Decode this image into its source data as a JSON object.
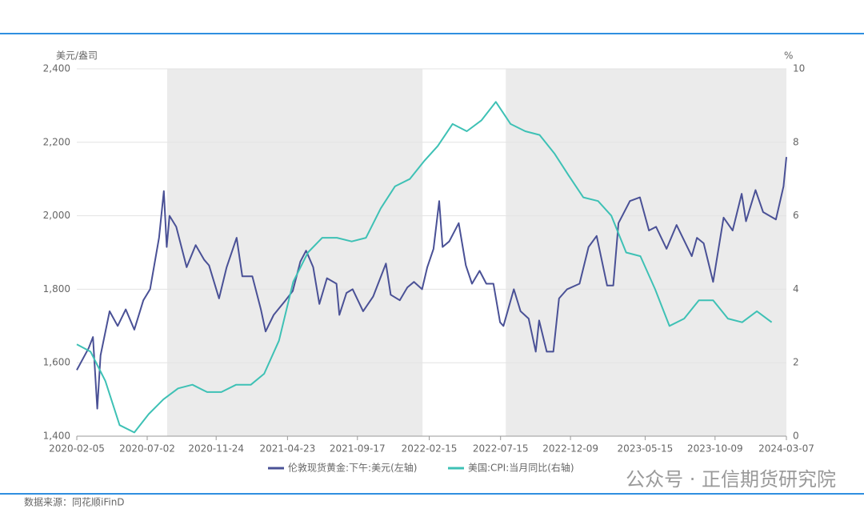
{
  "chart_data": {
    "type": "line",
    "ylabel": "美元/盎司",
    "y2label": "%",
    "xlim": [
      "2020-02-05",
      "2024-03-07"
    ],
    "xticks": [
      "2020-02-05",
      "2020-07-02",
      "2020-11-24",
      "2021-04-23",
      "2021-09-17",
      "2022-02-15",
      "2022-07-15",
      "2022-12-09",
      "2023-05-15",
      "2023-10-09",
      "2024-03-07"
    ],
    "ylim": [
      1400,
      2400
    ],
    "yticks": [
      {
        "value": 1400,
        "label": "1,400"
      },
      {
        "value": 1600,
        "label": "1,600"
      },
      {
        "value": 1800,
        "label": "1,800"
      },
      {
        "value": 2000,
        "label": "2,000"
      },
      {
        "value": 2200,
        "label": "2,200"
      },
      {
        "value": 2400,
        "label": "2,400"
      }
    ],
    "y2lim": [
      0,
      10
    ],
    "y2ticks": [
      0,
      2,
      4,
      6,
      8,
      10
    ],
    "grid": true,
    "shaded_ranges": [
      [
        "2020-08-13",
        "2022-02-01"
      ],
      [
        "2022-07-26",
        "2024-03-07"
      ]
    ],
    "shade_color": "#ebebeb",
    "series": [
      {
        "name": "伦敦现货黄金:下午:美元(左轴)",
        "color": "#4a5196",
        "x": [
          "2020-02-05",
          "2020-03-01",
          "2020-03-10",
          "2020-03-19",
          "2020-03-26",
          "2020-04-14",
          "2020-05-01",
          "2020-05-18",
          "2020-06-05",
          "2020-06-24",
          "2020-07-08",
          "2020-07-27",
          "2020-08-06",
          "2020-08-12",
          "2020-08-18",
          "2020-09-01",
          "2020-09-23",
          "2020-10-12",
          "2020-10-30",
          "2020-11-09",
          "2020-11-30",
          "2020-12-16",
          "2021-01-06",
          "2021-01-18",
          "2021-02-08",
          "2021-02-26",
          "2021-03-08",
          "2021-03-25",
          "2021-04-19",
          "2021-05-04",
          "2021-05-20",
          "2021-06-01",
          "2021-06-16",
          "2021-06-29",
          "2021-07-15",
          "2021-08-04",
          "2021-08-10",
          "2021-08-25",
          "2021-09-07",
          "2021-09-29",
          "2021-10-20",
          "2021-11-10",
          "2021-11-16",
          "2021-11-26",
          "2021-12-15",
          "2021-12-31",
          "2022-01-14",
          "2022-01-31",
          "2022-02-11",
          "2022-02-24",
          "2022-03-08",
          "2022-03-15",
          "2022-03-29",
          "2022-04-18",
          "2022-05-03",
          "2022-05-16",
          "2022-06-01",
          "2022-06-15",
          "2022-06-30",
          "2022-07-14",
          "2022-07-21",
          "2022-08-12",
          "2022-08-26",
          "2022-09-12",
          "2022-09-27",
          "2022-10-04",
          "2022-10-20",
          "2022-11-03",
          "2022-11-15",
          "2022-12-02",
          "2022-12-28",
          "2023-01-16",
          "2023-02-02",
          "2023-02-24",
          "2023-03-09",
          "2023-03-20",
          "2023-04-13",
          "2023-05-04",
          "2023-05-23",
          "2023-06-07",
          "2023-06-29",
          "2023-07-20",
          "2023-08-21",
          "2023-09-01",
          "2023-09-15",
          "2023-10-05",
          "2023-10-27",
          "2023-11-15",
          "2023-12-04",
          "2023-12-13",
          "2024-01-02",
          "2024-01-18",
          "2024-02-14",
          "2024-03-01",
          "2024-03-07"
        ],
        "values": [
          1580,
          1640,
          1670,
          1475,
          1620,
          1740,
          1700,
          1745,
          1690,
          1770,
          1800,
          1940,
          2067,
          1915,
          2000,
          1970,
          1860,
          1920,
          1880,
          1865,
          1775,
          1860,
          1940,
          1835,
          1835,
          1745,
          1685,
          1730,
          1770,
          1795,
          1875,
          1905,
          1860,
          1760,
          1830,
          1815,
          1730,
          1790,
          1800,
          1740,
          1780,
          1850,
          1870,
          1785,
          1770,
          1805,
          1820,
          1800,
          1860,
          1910,
          2040,
          1915,
          1930,
          1980,
          1865,
          1815,
          1850,
          1815,
          1815,
          1710,
          1700,
          1800,
          1740,
          1720,
          1630,
          1715,
          1630,
          1630,
          1775,
          1800,
          1815,
          1915,
          1945,
          1810,
          1810,
          1980,
          2040,
          2050,
          1960,
          1970,
          1910,
          1975,
          1890,
          1940,
          1925,
          1820,
          1995,
          1960,
          2060,
          1985,
          2070,
          2010,
          1990,
          2080,
          2160
        ]
      },
      {
        "name": "美国:CPI:当月同比(右轴)",
        "color": "#3ec1b5",
        "axis": "y2",
        "x": [
          "2020-02-05",
          "2020-03-05",
          "2020-04-05",
          "2020-05-05",
          "2020-06-05",
          "2020-07-05",
          "2020-08-05",
          "2020-09-05",
          "2020-10-05",
          "2020-11-05",
          "2020-12-05",
          "2021-01-05",
          "2021-02-05",
          "2021-03-05",
          "2021-04-05",
          "2021-05-05",
          "2021-06-05",
          "2021-07-05",
          "2021-08-05",
          "2021-09-05",
          "2021-10-05",
          "2021-11-05",
          "2021-12-05",
          "2022-01-05",
          "2022-02-05",
          "2022-03-05",
          "2022-04-05",
          "2022-05-05",
          "2022-06-05",
          "2022-07-05",
          "2022-08-05",
          "2022-09-05",
          "2022-10-05",
          "2022-11-05",
          "2022-12-05",
          "2023-01-05",
          "2023-02-05",
          "2023-03-05",
          "2023-04-05",
          "2023-05-05",
          "2023-06-05",
          "2023-07-05",
          "2023-08-05",
          "2023-09-05",
          "2023-10-05",
          "2023-11-05",
          "2023-12-05",
          "2024-01-05",
          "2024-02-05"
        ],
        "values": [
          2.5,
          2.3,
          1.5,
          0.3,
          0.1,
          0.6,
          1.0,
          1.3,
          1.4,
          1.2,
          1.2,
          1.4,
          1.4,
          1.7,
          2.6,
          4.2,
          5.0,
          5.4,
          5.4,
          5.3,
          5.4,
          6.2,
          6.8,
          7.0,
          7.5,
          7.9,
          8.5,
          8.3,
          8.6,
          9.1,
          8.5,
          8.3,
          8.2,
          7.7,
          7.1,
          6.5,
          6.4,
          6.0,
          5.0,
          4.9,
          4.0,
          3.0,
          3.2,
          3.7,
          3.7,
          3.2,
          3.1,
          3.4,
          3.1
        ]
      }
    ],
    "source": "数据来源：同花顺iFinD",
    "watermark": "公众号 · 正信期货研究院"
  }
}
